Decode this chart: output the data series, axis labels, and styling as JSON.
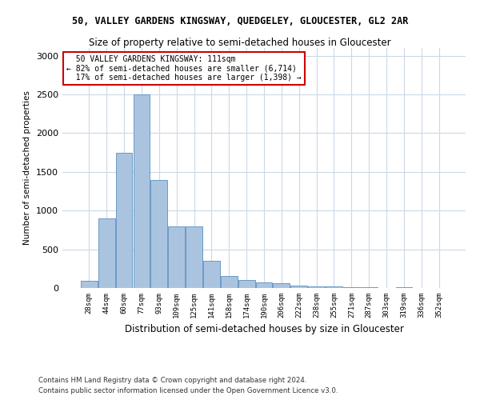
{
  "title": "50, VALLEY GARDENS KINGSWAY, QUEDGELEY, GLOUCESTER, GL2 2AR",
  "subtitle": "Size of property relative to semi-detached houses in Gloucester",
  "xlabel": "Distribution of semi-detached houses by size in Gloucester",
  "ylabel": "Number of semi-detached properties",
  "categories": [
    "28sqm",
    "44sqm",
    "60sqm",
    "77sqm",
    "93sqm",
    "109sqm",
    "125sqm",
    "141sqm",
    "158sqm",
    "174sqm",
    "190sqm",
    "206sqm",
    "222sqm",
    "238sqm",
    "255sqm",
    "271sqm",
    "287sqm",
    "303sqm",
    "319sqm",
    "336sqm",
    "352sqm"
  ],
  "values": [
    90,
    900,
    1750,
    2500,
    1400,
    800,
    800,
    350,
    155,
    100,
    70,
    60,
    30,
    25,
    25,
    15,
    10,
    5,
    15,
    5,
    5
  ],
  "bar_color": "#aac4e0",
  "bar_edge_color": "#5a8fc0",
  "property_label": "50 VALLEY GARDENS KINGSWAY: 111sqm",
  "pct_smaller": 82,
  "count_smaller": 6714,
  "pct_larger": 17,
  "count_larger": 1398,
  "annotation_box_color": "#ffffff",
  "annotation_box_edge": "#cc0000",
  "ylim": [
    0,
    3100
  ],
  "yticks": [
    0,
    500,
    1000,
    1500,
    2000,
    2500,
    3000
  ],
  "footer1": "Contains HM Land Registry data © Crown copyright and database right 2024.",
  "footer2": "Contains public sector information licensed under the Open Government Licence v3.0.",
  "background_color": "#ffffff",
  "grid_color": "#ccd9e8"
}
